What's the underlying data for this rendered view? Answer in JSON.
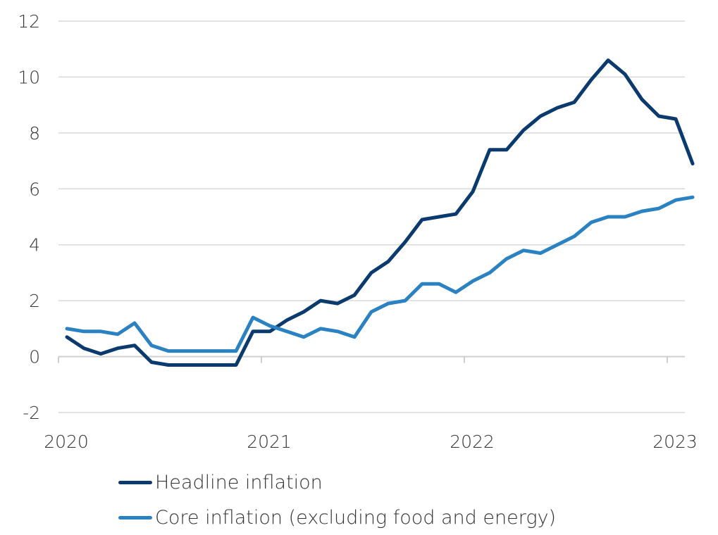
{
  "chart_data": {
    "type": "line",
    "title": "",
    "xlabel": "",
    "ylabel": "",
    "ylim": [
      -2,
      12
    ],
    "yticks": [
      "12",
      "10",
      "8",
      "6",
      "4",
      "2",
      "0",
      "-2"
    ],
    "ytick_values": [
      12,
      10,
      8,
      6,
      4,
      2,
      0,
      -2
    ],
    "xticks": [
      "2020",
      "2021",
      "2022",
      "2023"
    ],
    "xtick_values": [
      2020,
      2021,
      2022,
      2023
    ],
    "x_start": 2020.0417,
    "x_step": 0.08333,
    "grid": true,
    "legend_position": "bottom-left",
    "series": [
      {
        "name": "Headline inflation",
        "color": "#0b3a6e",
        "values": [
          0.7,
          0.3,
          0.1,
          0.3,
          0.4,
          -0.2,
          -0.3,
          -0.3,
          -0.3,
          -0.3,
          -0.3,
          0.9,
          0.9,
          1.3,
          1.6,
          2.0,
          1.9,
          2.2,
          3.0,
          3.4,
          4.1,
          4.9,
          5.0,
          5.1,
          5.9,
          7.4,
          7.4,
          8.1,
          8.6,
          8.9,
          9.1,
          9.9,
          10.6,
          10.1,
          9.2,
          8.6,
          8.5,
          6.9
        ]
      },
      {
        "name": "Core inflation (excluding food and energy)",
        "color": "#2b82c2",
        "values": [
          1.0,
          0.9,
          0.9,
          0.8,
          1.2,
          0.4,
          0.2,
          0.2,
          0.2,
          0.2,
          0.2,
          1.4,
          1.1,
          0.9,
          0.7,
          1.0,
          0.9,
          0.7,
          1.6,
          1.9,
          2.0,
          2.6,
          2.6,
          2.3,
          2.7,
          3.0,
          3.5,
          3.8,
          3.7,
          4.0,
          4.3,
          4.8,
          5.0,
          5.0,
          5.2,
          5.3,
          5.6,
          5.7
        ]
      }
    ]
  }
}
